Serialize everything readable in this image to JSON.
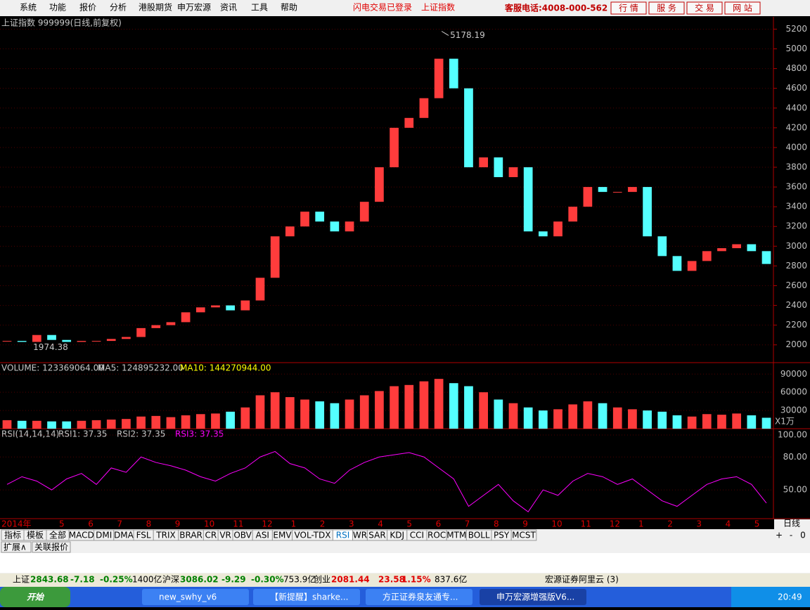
{
  "menu": {
    "items": [
      "系统",
      "功能",
      "报价",
      "分析",
      "港股期货",
      "申万宏源",
      "资讯",
      "工具",
      "帮助"
    ],
    "status": [
      "闪电交易已登录",
      "上证指数"
    ],
    "hotline": "客服电话:4008-000-562",
    "buttons": [
      "行 情",
      "服 务",
      "交 易",
      "网 站"
    ]
  },
  "chart_data": [
    {
      "type": "candlestick",
      "title": "上证指数 999999(日线,前复权)",
      "high_label": 5178.19,
      "low_label": 1974.38,
      "up_color": "#ff3c3c",
      "down_color": "#54ffff",
      "close": [
        2040,
        2030,
        2100,
        2050,
        2030,
        2040,
        2040,
        2060,
        2080,
        2170,
        2200,
        2230,
        2330,
        2380,
        2400,
        2350,
        2450,
        2680,
        3100,
        3200,
        3350,
        3250,
        3150,
        3250,
        3450,
        3800,
        4200,
        4300,
        4500,
        4900,
        4600,
        3800,
        3900,
        3700,
        3800,
        3150,
        3100,
        3250,
        3400,
        3600,
        3550,
        3550,
        3600,
        3100,
        2900,
        2750,
        2850,
        2950,
        2980,
        3020,
        2950,
        2820
      ],
      "ylim": [
        1820,
        5310
      ],
      "yticks": [
        2000,
        2200,
        2400,
        2600,
        2800,
        3000,
        3200,
        3400,
        3600,
        3800,
        4000,
        4200,
        4400,
        4600,
        4800,
        5000,
        5200
      ],
      "grid": true
    },
    {
      "type": "bar",
      "legend": [
        "VOLUME: 123369064.00",
        "MA5: 124895232.00",
        "MA10: 144270944.00"
      ],
      "unit_label": "X1万",
      "values": [
        14000,
        13000,
        13000,
        12000,
        12000,
        13000,
        14000,
        15000,
        16000,
        20000,
        21000,
        19000,
        22000,
        24000,
        25000,
        28000,
        35000,
        55000,
        60000,
        52000,
        48000,
        45000,
        42000,
        48000,
        55000,
        62000,
        70000,
        72000,
        78000,
        82000,
        75000,
        70000,
        60000,
        48000,
        42000,
        35000,
        30000,
        32000,
        40000,
        45000,
        42000,
        35000,
        32000,
        30000,
        28000,
        22000,
        20000,
        24000,
        23000,
        25000,
        22000,
        18000
      ],
      "ylim": [
        0,
        106500
      ],
      "yticks": [
        30000,
        60000,
        90000
      ]
    },
    {
      "type": "line",
      "legend": [
        "RSI(14,14,14)",
        "RSI1: 37.35",
        "RSI2: 37.35",
        "RSI3: 37.35"
      ],
      "color": "#ff00ff",
      "values": [
        55,
        62,
        58,
        50,
        60,
        65,
        55,
        70,
        66,
        80,
        75,
        72,
        68,
        62,
        58,
        65,
        70,
        80,
        85,
        74,
        70,
        60,
        56,
        68,
        75,
        80,
        82,
        84,
        80,
        70,
        60,
        35,
        45,
        55,
        40,
        30,
        50,
        45,
        58,
        65,
        62,
        55,
        60,
        50,
        40,
        35,
        45,
        55,
        60,
        62,
        55,
        38
      ],
      "ylim": [
        23.8,
        104.5
      ],
      "yticks": [
        {
          "value": 50,
          "label": "50.00"
        },
        {
          "value": 80,
          "label": "80.00"
        },
        {
          "value": 100,
          "label": "100.00"
        }
      ]
    }
  ],
  "x_axis": {
    "year_label": "2014年",
    "months": [
      "5",
      "6",
      "7",
      "8",
      "9",
      "10",
      "11",
      "12",
      "1",
      "2",
      "3",
      "4",
      "5",
      "6",
      "7",
      "8",
      "9",
      "10",
      "11",
      "12",
      "1",
      "2",
      "3",
      "4",
      "5"
    ],
    "period": "日线"
  },
  "tabs": [
    "指标",
    "模板",
    "全部",
    "MACD",
    "DMI",
    "DMA",
    "FSL",
    "TRIX",
    "BRAR",
    "CR",
    "VR",
    "OBV",
    "ASI",
    "EMV",
    "VOL-TDX",
    "RSI",
    "WR",
    "SAR",
    "KDJ",
    "CCI",
    "ROC",
    "MTM",
    "BOLL",
    "PSY",
    "MCST"
  ],
  "tab_controls": [
    "+",
    "-",
    "0"
  ],
  "sub_tabs": [
    "扩展∧",
    "关联报价"
  ],
  "status_bar": {
    "items": [
      "上证",
      "2843.68",
      "-7.18",
      "-0.25%",
      "1400亿",
      "沪深",
      "3086.02",
      "-9.29",
      "-0.30%",
      "753.9亿",
      "创业",
      "2081.44",
      "23.58",
      "1.15%",
      "837.6亿"
    ],
    "server": "宏源证券阿里云 (3)"
  },
  "taskbar": {
    "start": "开始",
    "windows": [
      "new_swhy_v6",
      "【新提醒】sharke...",
      "方正证券泉友通专...",
      "申万宏源增强版V6..."
    ],
    "clock": "20:49"
  }
}
